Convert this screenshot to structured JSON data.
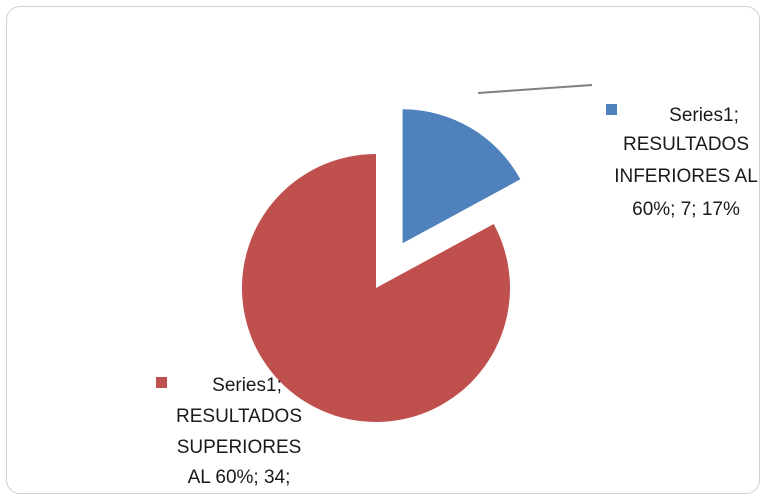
{
  "chart_data": {
    "type": "pie",
    "exploded": true,
    "series": [
      {
        "name": "Series1",
        "slices": [
          {
            "category": "RESULTADOS INFERIORES AL 60%",
            "value": 7,
            "percent": "17%",
            "color": "#4f81bd",
            "label_lines": [
              "Series1;",
              "RESULTADOS",
              "INFERIORES AL",
              "60%; 7; 17%"
            ]
          },
          {
            "category": "RESULTADOS SUPERIORES AL 60%",
            "value": 34,
            "color": "#c0504d",
            "label_lines": [
              "Series1;",
              "RESULTADOS",
              "SUPERIORES",
              "AL 60%; 34;"
            ]
          }
        ]
      }
    ]
  }
}
